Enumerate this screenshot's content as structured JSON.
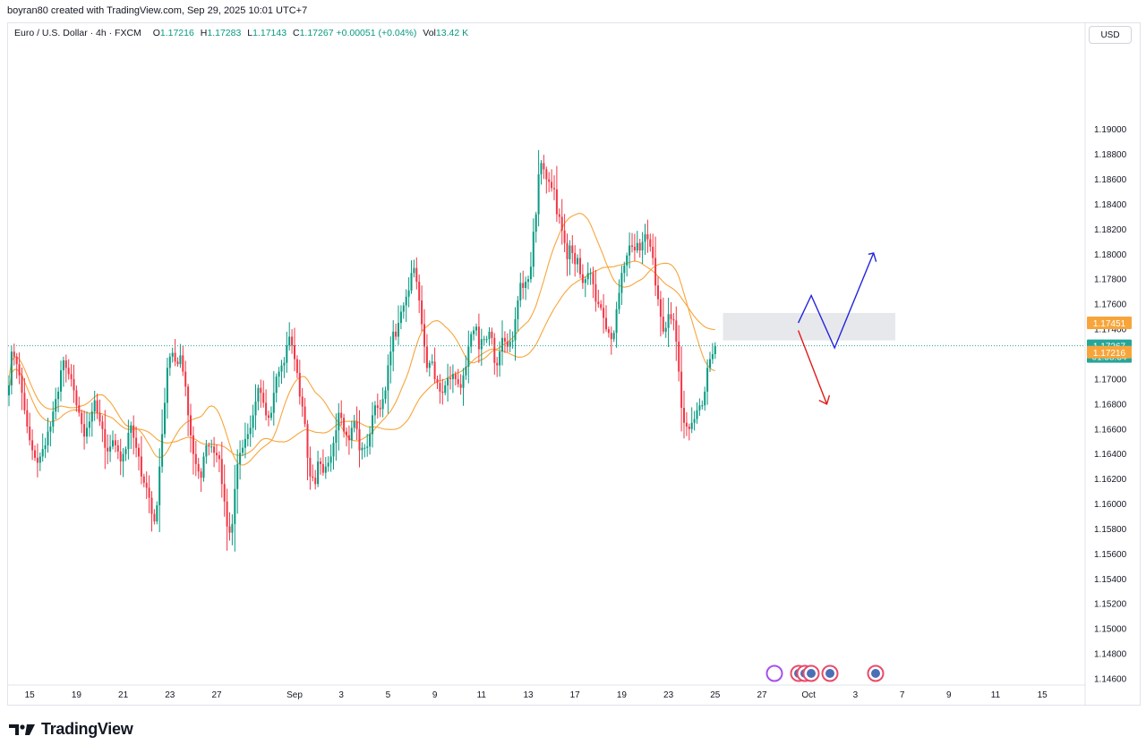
{
  "header": {
    "attribution": "boyran80 created with TradingView.com, Sep 29, 2025 10:01 UTC+7"
  },
  "legend": {
    "symbol": "Euro / U.S. Dollar · 4h · FXCM",
    "open_label": "O",
    "open": "1.17216",
    "high_label": "H",
    "high": "1.17283",
    "low_label": "L",
    "low": "1.17143",
    "close_label": "C",
    "close": "1.17267",
    "change": "+0.00051 (+0.04%)",
    "vol_label": "Vol",
    "volume": "13.42 K"
  },
  "currency": "USD",
  "brand": {
    "name": "TradingView",
    "logo_icon": "tradingview-logo-icon"
  },
  "colors": {
    "up": "#089981",
    "down": "#f23645",
    "ma": "#f7a53b",
    "price_line": "#26a69a",
    "label_orange": "#f7a53b",
    "arrow_up": "#2323e0",
    "arrow_down": "#e01b1b",
    "zone": "#d1d4dc"
  },
  "chart_data": {
    "type": "candlestick",
    "instrument": "EUR/USD",
    "timeframe": "4h",
    "ylim": [
      1.1455,
      1.1985
    ],
    "y_ticks": [
      "1.19000",
      "1.18800",
      "1.18600",
      "1.18400",
      "1.18200",
      "1.18000",
      "1.17800",
      "1.17600",
      "1.17400",
      "1.17200",
      "1.17000",
      "1.16800",
      "1.16600",
      "1.16400",
      "1.16200",
      "1.16000",
      "1.15800",
      "1.15600",
      "1.15400",
      "1.15200",
      "1.15000",
      "1.14800",
      "1.14600"
    ],
    "x_ticks": [
      "15",
      "19",
      "21",
      "23",
      "27",
      "Sep",
      "3",
      "5",
      "9",
      "11",
      "13",
      "17",
      "19",
      "23",
      "25",
      "27",
      "Oct",
      "3",
      "7",
      "9",
      "11",
      "15"
    ],
    "date_anchors": [
      {
        "label": "15",
        "index": 8
      },
      {
        "label": "19",
        "index": 26
      },
      {
        "label": "21",
        "index": 44
      },
      {
        "label": "23",
        "index": 62
      },
      {
        "label": "27",
        "index": 80
      },
      {
        "label": "Sep",
        "index": 110
      },
      {
        "label": "3",
        "index": 128
      },
      {
        "label": "5",
        "index": 146
      },
      {
        "label": "9",
        "index": 164
      },
      {
        "label": "11",
        "index": 182
      },
      {
        "label": "13",
        "index": 200
      },
      {
        "label": "17",
        "index": 218
      },
      {
        "label": "19",
        "index": 236
      },
      {
        "label": "23",
        "index": 254
      },
      {
        "label": "25",
        "index": 272
      },
      {
        "label": "27",
        "index": 290
      },
      {
        "label": "Oct",
        "index": 308
      },
      {
        "label": "3",
        "index": 326
      },
      {
        "label": "7",
        "index": 344
      },
      {
        "label": "9",
        "index": 362
      },
      {
        "label": "11",
        "index": 380
      },
      {
        "label": "15",
        "index": 398
      }
    ],
    "closes": [
      1.1695,
      1.1722,
      1.1718,
      1.1712,
      1.1703,
      1.1689,
      1.1675,
      1.1662,
      1.1651,
      1.1643,
      1.1637,
      1.1633,
      1.1638,
      1.1644,
      1.1647,
      1.1658,
      1.1662,
      1.1674,
      1.1684,
      1.169,
      1.1707,
      1.1715,
      1.1709,
      1.1704,
      1.17,
      1.1691,
      1.1679,
      1.1673,
      1.1664,
      1.1654,
      1.1661,
      1.1666,
      1.1674,
      1.1683,
      1.1673,
      1.1666,
      1.166,
      1.1645,
      1.1642,
      1.1646,
      1.1651,
      1.1647,
      1.1642,
      1.1634,
      1.164,
      1.1644,
      1.1657,
      1.1663,
      1.1653,
      1.1645,
      1.1638,
      1.1622,
      1.1617,
      1.1613,
      1.1605,
      1.1592,
      1.1586,
      1.1599,
      1.163,
      1.1656,
      1.1681,
      1.1709,
      1.1718,
      1.1721,
      1.1714,
      1.1712,
      1.1719,
      1.1706,
      1.1694,
      1.1671,
      1.1655,
      1.164,
      1.1632,
      1.1626,
      1.1621,
      1.1638,
      1.1647,
      1.1646,
      1.1646,
      1.1641,
      1.1639,
      1.1636,
      1.1616,
      1.1602,
      1.1582,
      1.1577,
      1.1584,
      1.1612,
      1.1632,
      1.1641,
      1.1645,
      1.1652,
      1.1656,
      1.1661,
      1.1671,
      1.1682,
      1.1693,
      1.1689,
      1.1681,
      1.1671,
      1.1669,
      1.1673,
      1.1689,
      1.1702,
      1.1706,
      1.1711,
      1.1713,
      1.1727,
      1.1734,
      1.1727,
      1.1716,
      1.1705,
      1.1686,
      1.1678,
      1.1664,
      1.1637,
      1.1622,
      1.1621,
      1.1616,
      1.1634,
      1.1632,
      1.1625,
      1.163,
      1.1633,
      1.1638,
      1.1649,
      1.1659,
      1.1673,
      1.1669,
      1.1658,
      1.1655,
      1.1651,
      1.1661,
      1.1666,
      1.166,
      1.1643,
      1.1645,
      1.1645,
      1.1646,
      1.1656,
      1.1671,
      1.1679,
      1.1677,
      1.1676,
      1.1684,
      1.1691,
      1.1711,
      1.1722,
      1.1738,
      1.1734,
      1.1745,
      1.1754,
      1.1759,
      1.1766,
      1.1771,
      1.1785,
      1.1789,
      1.1778,
      1.1763,
      1.1744,
      1.1726,
      1.1709,
      1.1713,
      1.1714,
      1.17,
      1.1697,
      1.169,
      1.1689,
      1.1695,
      1.1701,
      1.17,
      1.1704,
      1.17,
      1.1696,
      1.1693,
      1.1703,
      1.171,
      1.1726,
      1.1736,
      1.1739,
      1.1742,
      1.1724,
      1.1732,
      1.1732,
      1.1732,
      1.1738,
      1.1733,
      1.1713,
      1.1711,
      1.1722,
      1.1733,
      1.173,
      1.1726,
      1.173,
      1.1731,
      1.1748,
      1.1763,
      1.1777,
      1.1773,
      1.1778,
      1.178,
      1.179,
      1.1818,
      1.1832,
      1.1864,
      1.1873,
      1.1868,
      1.186,
      1.1858,
      1.1853,
      1.1852,
      1.1832,
      1.183,
      1.1819,
      1.1809,
      1.1796,
      1.1807,
      1.1801,
      1.1792,
      1.1797,
      1.1784,
      1.1777,
      1.178,
      1.1785,
      1.1785,
      1.1776,
      1.1762,
      1.176,
      1.1757,
      1.1749,
      1.174,
      1.1737,
      1.1732,
      1.1737,
      1.1756,
      1.1769,
      1.1785,
      1.1791,
      1.1799,
      1.1807,
      1.1806,
      1.1803,
      1.1809,
      1.1803,
      1.181,
      1.1816,
      1.1812,
      1.1806,
      1.1797,
      1.1775,
      1.1764,
      1.175,
      1.1738,
      1.1741,
      1.1752,
      1.1748,
      1.1747,
      1.173,
      1.1706,
      1.1677,
      1.1665,
      1.1662,
      1.166,
      1.1665,
      1.1668,
      1.1675,
      1.1679,
      1.1679,
      1.169,
      1.1709,
      1.1716,
      1.172,
      1.17267
    ],
    "current_price": "1.17267",
    "countdown": "01:58:34",
    "highlight_price": "1.17451",
    "low_line_price": "1.17216",
    "resistance_zone": [
      1.1731,
      1.1753
    ],
    "moving_averages": [
      "MA fast",
      "MA slow"
    ]
  }
}
